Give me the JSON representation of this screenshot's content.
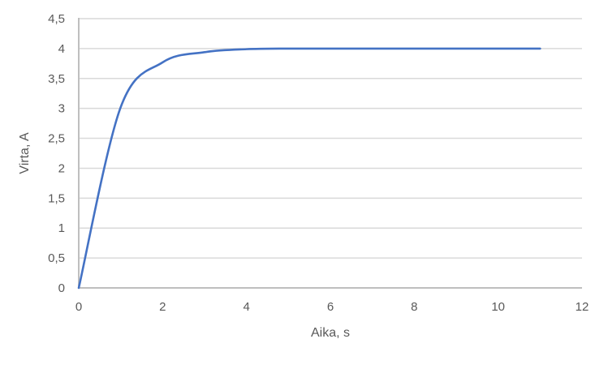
{
  "chart_data": {
    "type": "line",
    "title": "",
    "xlabel": "Aika, s",
    "ylabel": "Virta, A",
    "xlim": [
      0,
      12
    ],
    "ylim": [
      0,
      4.5
    ],
    "x_ticks": [
      0,
      2,
      4,
      6,
      8,
      10,
      12
    ],
    "x_tick_labels": [
      "0",
      "2",
      "4",
      "6",
      "8",
      "10",
      "12"
    ],
    "y_ticks": [
      0,
      0.5,
      1,
      1.5,
      2,
      2.5,
      3,
      3.5,
      4,
      4.5
    ],
    "y_tick_labels": [
      "0",
      "0,5",
      "1",
      "1,5",
      "2",
      "2,5",
      "3",
      "3,5",
      "4",
      "4,5"
    ],
    "grid": "horizontal-only",
    "legend": "none",
    "line_smoothing": true,
    "series": [
      {
        "name": "Virta",
        "x": [
          0,
          1,
          2,
          3,
          4,
          5,
          6,
          7,
          8,
          9,
          10,
          11
        ],
        "y": [
          0,
          3.02,
          3.77,
          3.94,
          3.99,
          4,
          4,
          4,
          4,
          4,
          4,
          4
        ]
      }
    ],
    "colors": {
      "line": "#4472C4",
      "gridline": "#D9D9D9",
      "axis_line": "#BFBFBF",
      "label_text": "#595959",
      "background": "#FFFFFF"
    }
  }
}
